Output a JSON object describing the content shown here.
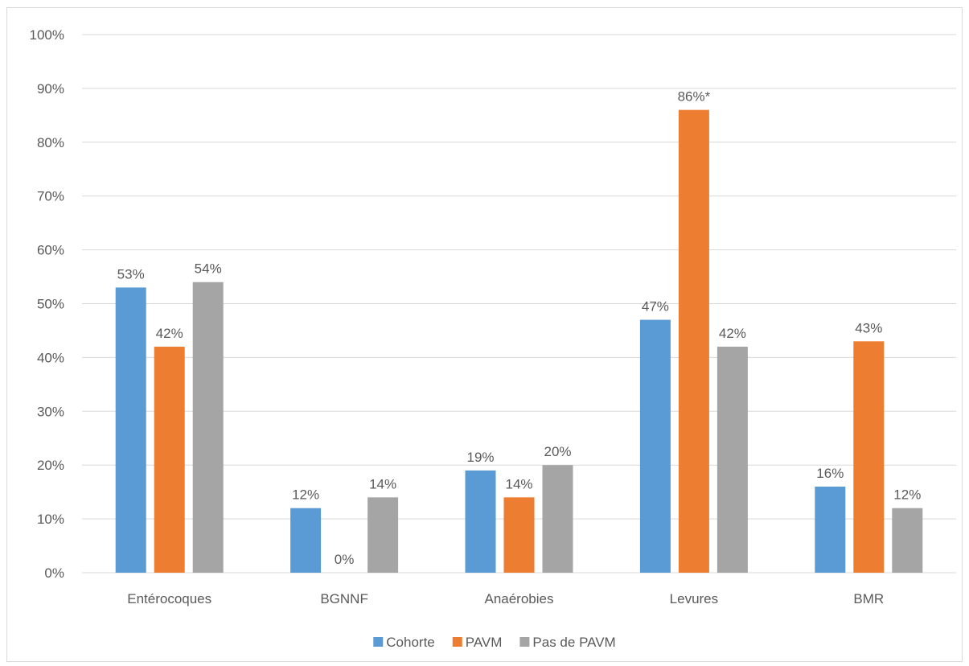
{
  "chart_data": {
    "type": "bar",
    "title": "",
    "xlabel": "",
    "ylabel": "",
    "ylim": [
      0,
      100
    ],
    "y_tick_step": 10,
    "y_tick_suffix": "%",
    "grid": true,
    "legend_position": "bottom",
    "categories": [
      "Entérocoques",
      "BGNNF",
      "Anaérobies",
      "Levures",
      "BMR"
    ],
    "series": [
      {
        "name": "Cohorte",
        "color": "#5b9bd5",
        "values": [
          53,
          12,
          19,
          47,
          16
        ],
        "labels": [
          "53%",
          "12%",
          "19%",
          "47%",
          "16%"
        ]
      },
      {
        "name": "PAVM",
        "color": "#ed7d31",
        "values": [
          42,
          0,
          14,
          86,
          43
        ],
        "labels": [
          "42%",
          "0%",
          "14%",
          "86%*",
          "43%"
        ]
      },
      {
        "name": "Pas de PAVM",
        "color": "#a5a5a5",
        "values": [
          54,
          14,
          20,
          42,
          12
        ],
        "labels": [
          "54%",
          "14%",
          "20%",
          "42%",
          "12%"
        ]
      }
    ]
  }
}
